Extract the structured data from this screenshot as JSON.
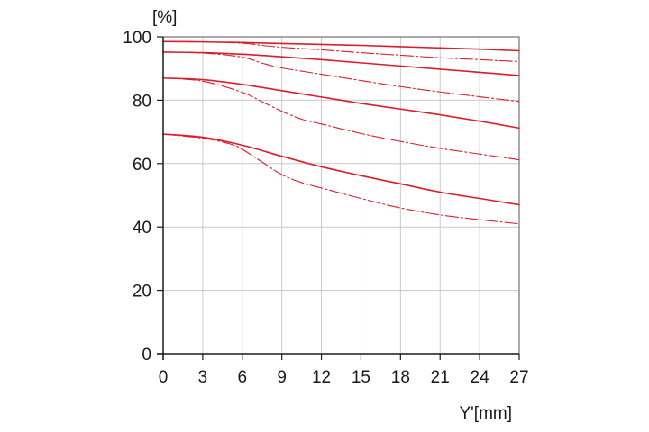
{
  "chart_data": {
    "type": "line",
    "ylabel": "[%]",
    "xlabel": "Y'[mm]",
    "xlim": [
      0,
      27
    ],
    "ylim": [
      0,
      100
    ],
    "x_ticks": [
      "0",
      "3",
      "6",
      "9",
      "12",
      "15",
      "18",
      "21",
      "24",
      "27"
    ],
    "y_ticks": [
      "0",
      "20",
      "40",
      "60",
      "80",
      "100"
    ],
    "grid": true,
    "colors": {
      "series": "#d81e2c",
      "grid": "#c8c8c8",
      "frame": "#555555",
      "text": "#1a1a1a"
    },
    "series": [
      {
        "style": "solid",
        "x": [
          0,
          3,
          6,
          9,
          12,
          15,
          18,
          21,
          24,
          27
        ],
        "y": [
          98.5,
          98.4,
          98.2,
          97.9,
          97.6,
          97.3,
          96.9,
          96.5,
          96.1,
          95.6
        ]
      },
      {
        "style": "dashed",
        "x": [
          0,
          3,
          6,
          7.5,
          9,
          12,
          15,
          18,
          21,
          24,
          27
        ],
        "y": [
          98.5,
          98.4,
          98.0,
          97.3,
          96.7,
          95.9,
          95.0,
          94.2,
          93.4,
          92.8,
          92.2
        ]
      },
      {
        "style": "solid",
        "x": [
          0,
          3,
          6,
          9,
          12,
          15,
          18,
          21,
          24,
          27
        ],
        "y": [
          95.2,
          95.0,
          94.5,
          93.7,
          92.8,
          91.8,
          90.8,
          89.8,
          88.8,
          87.8
        ]
      },
      {
        "style": "dashed",
        "x": [
          0,
          3,
          6,
          7.5,
          9,
          12,
          15,
          18,
          21,
          24,
          27
        ],
        "y": [
          95.2,
          94.9,
          93.6,
          91.7,
          90.2,
          88.2,
          86.2,
          84.3,
          82.6,
          81.1,
          79.6
        ]
      },
      {
        "style": "solid",
        "x": [
          0,
          3,
          6,
          9,
          12,
          15,
          18,
          21,
          24,
          27
        ],
        "y": [
          87.0,
          86.5,
          85.0,
          83.0,
          81.0,
          79.0,
          77.2,
          75.4,
          73.4,
          71.2
        ]
      },
      {
        "style": "dashed",
        "x": [
          0,
          3,
          6,
          7.5,
          9,
          10.5,
          12,
          15,
          18,
          21,
          24,
          27
        ],
        "y": [
          87.0,
          86.0,
          82.5,
          79.5,
          76.5,
          74.0,
          72.5,
          69.5,
          67.0,
          64.8,
          63.0,
          61.2
        ]
      },
      {
        "style": "solid",
        "x": [
          0,
          3,
          6,
          9,
          12,
          15,
          18,
          21,
          24,
          27
        ],
        "y": [
          69.3,
          68.3,
          65.8,
          62.3,
          59.0,
          56.2,
          53.6,
          51.0,
          49.0,
          47.0
        ]
      },
      {
        "style": "dashed",
        "x": [
          0,
          3,
          5,
          6,
          7.5,
          9,
          10.5,
          12,
          15,
          18,
          21,
          24,
          27
        ],
        "y": [
          69.3,
          68.0,
          66.3,
          64.5,
          60.5,
          56.5,
          54.0,
          52.3,
          49.0,
          46.0,
          43.8,
          42.3,
          41.0
        ]
      }
    ]
  }
}
